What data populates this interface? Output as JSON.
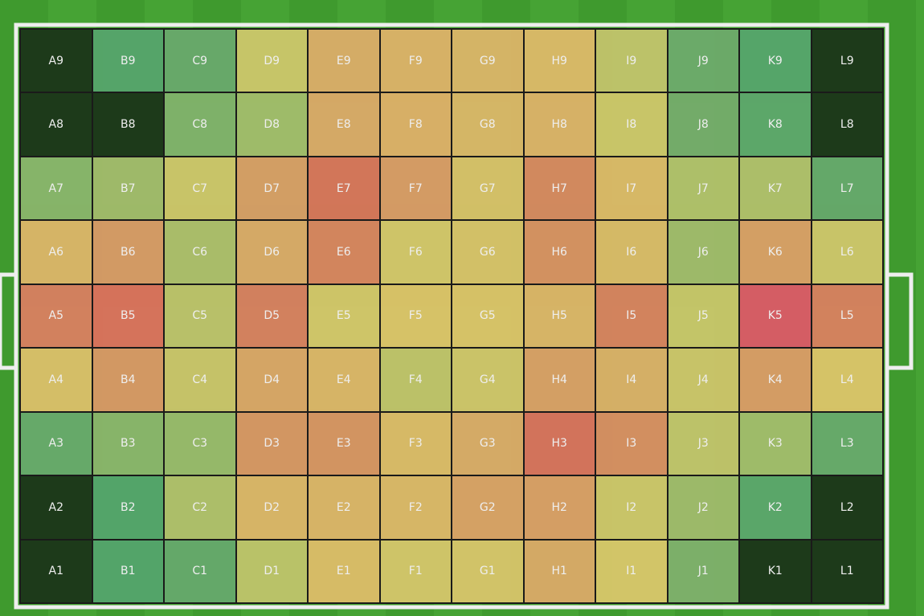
{
  "grid": {
    "rows": [
      [
        {
          "label": "A9",
          "color": "#1e3d1b"
        },
        {
          "label": "B9",
          "color": "#5aaf6f"
        },
        {
          "label": "C9",
          "color": "#6db36f"
        },
        {
          "label": "D9",
          "color": "#d4d36e"
        },
        {
          "label": "E9",
          "color": "#e3b86c"
        },
        {
          "label": "F9",
          "color": "#e5bd6c"
        },
        {
          "label": "G9",
          "color": "#e3c06c"
        },
        {
          "label": "H9",
          "color": "#e5c46c"
        },
        {
          "label": "I9",
          "color": "#c9cf6f"
        },
        {
          "label": "J9",
          "color": "#72b56f"
        },
        {
          "label": "K9",
          "color": "#5ab070"
        },
        {
          "label": "L9",
          "color": "#1e3d1b"
        }
      ],
      [
        {
          "label": "A8",
          "color": "#1e3d1b"
        },
        {
          "label": "B8",
          "color": "#1e3d1b"
        },
        {
          "label": "C8",
          "color": "#86bd6f"
        },
        {
          "label": "D8",
          "color": "#a9c86f"
        },
        {
          "label": "E8",
          "color": "#e3b46c"
        },
        {
          "label": "F8",
          "color": "#e6bb6c"
        },
        {
          "label": "G8",
          "color": "#e3c26c"
        },
        {
          "label": "H8",
          "color": "#e5bd6c"
        },
        {
          "label": "I8",
          "color": "#d6d36e"
        },
        {
          "label": "J8",
          "color": "#7ab76f"
        },
        {
          "label": "K8",
          "color": "#62b270"
        },
        {
          "label": "L8",
          "color": "#1e3d1b"
        }
      ],
      [
        {
          "label": "A7",
          "color": "#8fc06f"
        },
        {
          "label": "B7",
          "color": "#a8c66f"
        },
        {
          "label": "C7",
          "color": "#d6d16e"
        },
        {
          "label": "D7",
          "color": "#e0a86a"
        },
        {
          "label": "E7",
          "color": "#e07e5e"
        },
        {
          "label": "F7",
          "color": "#e2a56a"
        },
        {
          "label": "G7",
          "color": "#e0cc6d"
        },
        {
          "label": "H7",
          "color": "#df9264"
        },
        {
          "label": "I7",
          "color": "#e5c46c"
        },
        {
          "label": "J7",
          "color": "#b9cc6f"
        },
        {
          "label": "K7",
          "color": "#b8cb6f"
        },
        {
          "label": "L7",
          "color": "#6ab36f"
        }
      ],
      [
        {
          "label": "A6",
          "color": "#e4c06c"
        },
        {
          "label": "B6",
          "color": "#e0a46a"
        },
        {
          "label": "C6",
          "color": "#b4c96f"
        },
        {
          "label": "D6",
          "color": "#e3b46c"
        },
        {
          "label": "E6",
          "color": "#e08e63"
        },
        {
          "label": "F6",
          "color": "#dcd16e"
        },
        {
          "label": "G6",
          "color": "#e0cd6d"
        },
        {
          "label": "H6",
          "color": "#e09a66"
        },
        {
          "label": "I6",
          "color": "#e3c66c"
        },
        {
          "label": "J6",
          "color": "#a7c66f"
        },
        {
          "label": "K6",
          "color": "#e2aa6a"
        },
        {
          "label": "L6",
          "color": "#d6d16e"
        }
      ],
      [
        {
          "label": "A5",
          "color": "#e08964"
        },
        {
          "label": "B5",
          "color": "#e47a60"
        },
        {
          "label": "C5",
          "color": "#c5cd6f"
        },
        {
          "label": "D5",
          "color": "#e08964"
        },
        {
          "label": "E5",
          "color": "#dcd26e"
        },
        {
          "label": "F5",
          "color": "#e5cf6d"
        },
        {
          "label": "G5",
          "color": "#e4cf6d"
        },
        {
          "label": "H5",
          "color": "#e5c06c"
        },
        {
          "label": "I5",
          "color": "#e08c63"
        },
        {
          "label": "J5",
          "color": "#d0d26e"
        },
        {
          "label": "K5",
          "color": "#e3636a"
        },
        {
          "label": "L5",
          "color": "#e08a63"
        }
      ],
      [
        {
          "label": "A4",
          "color": "#e3cb6d"
        },
        {
          "label": "B4",
          "color": "#e0a269"
        },
        {
          "label": "C4",
          "color": "#d2cf6e"
        },
        {
          "label": "D4",
          "color": "#e3b06b"
        },
        {
          "label": "E4",
          "color": "#e5c06c"
        },
        {
          "label": "F4",
          "color": "#c8ce6e"
        },
        {
          "label": "G4",
          "color": "#d8d06e"
        },
        {
          "label": "H4",
          "color": "#e2aa6a"
        },
        {
          "label": "I4",
          "color": "#e3bb6c"
        },
        {
          "label": "J4",
          "color": "#d5d06e"
        },
        {
          "label": "K4",
          "color": "#e2a66a"
        },
        {
          "label": "L4",
          "color": "#e4d06d"
        }
      ],
      [
        {
          "label": "A3",
          "color": "#6cb46f"
        },
        {
          "label": "B3",
          "color": "#90c06f"
        },
        {
          "label": "C3",
          "color": "#9fc46f"
        },
        {
          "label": "D3",
          "color": "#e0a068"
        },
        {
          "label": "E3",
          "color": "#e09e67"
        },
        {
          "label": "F3",
          "color": "#e5c66c"
        },
        {
          "label": "G3",
          "color": "#e3b56c"
        },
        {
          "label": "H3",
          "color": "#e07a60"
        },
        {
          "label": "I3",
          "color": "#e09866"
        },
        {
          "label": "J3",
          "color": "#c9cf6f"
        },
        {
          "label": "K3",
          "color": "#a9c86f"
        },
        {
          "label": "L3",
          "color": "#6cb46f"
        }
      ],
      [
        {
          "label": "A2",
          "color": "#1e3d1b"
        },
        {
          "label": "B2",
          "color": "#58af70"
        },
        {
          "label": "C2",
          "color": "#b8cb6f"
        },
        {
          "label": "D2",
          "color": "#e5c06c"
        },
        {
          "label": "E2",
          "color": "#e5bf6c"
        },
        {
          "label": "F2",
          "color": "#e5c26c"
        },
        {
          "label": "G2",
          "color": "#e3ac6a"
        },
        {
          "label": "H2",
          "color": "#e3a86a"
        },
        {
          "label": "I2",
          "color": "#d6d16e"
        },
        {
          "label": "J2",
          "color": "#a6c66f"
        },
        {
          "label": "K2",
          "color": "#5fb170"
        },
        {
          "label": "L2",
          "color": "#1e3d1b"
        }
      ],
      [
        {
          "label": "A1",
          "color": "#1e3d1b"
        },
        {
          "label": "B1",
          "color": "#58af70"
        },
        {
          "label": "C1",
          "color": "#6ab36f"
        },
        {
          "label": "D1",
          "color": "#c6cf6e"
        },
        {
          "label": "E1",
          "color": "#e5c86c"
        },
        {
          "label": "F1",
          "color": "#dcd16e"
        },
        {
          "label": "G1",
          "color": "#dfd06e"
        },
        {
          "label": "H1",
          "color": "#e2b46b"
        },
        {
          "label": "I1",
          "color": "#e0d36e"
        },
        {
          "label": "J1",
          "color": "#84bb6f"
        },
        {
          "label": "K1",
          "color": "#1e3d1b"
        },
        {
          "label": "L1",
          "color": "#1e3d1b"
        }
      ]
    ]
  }
}
